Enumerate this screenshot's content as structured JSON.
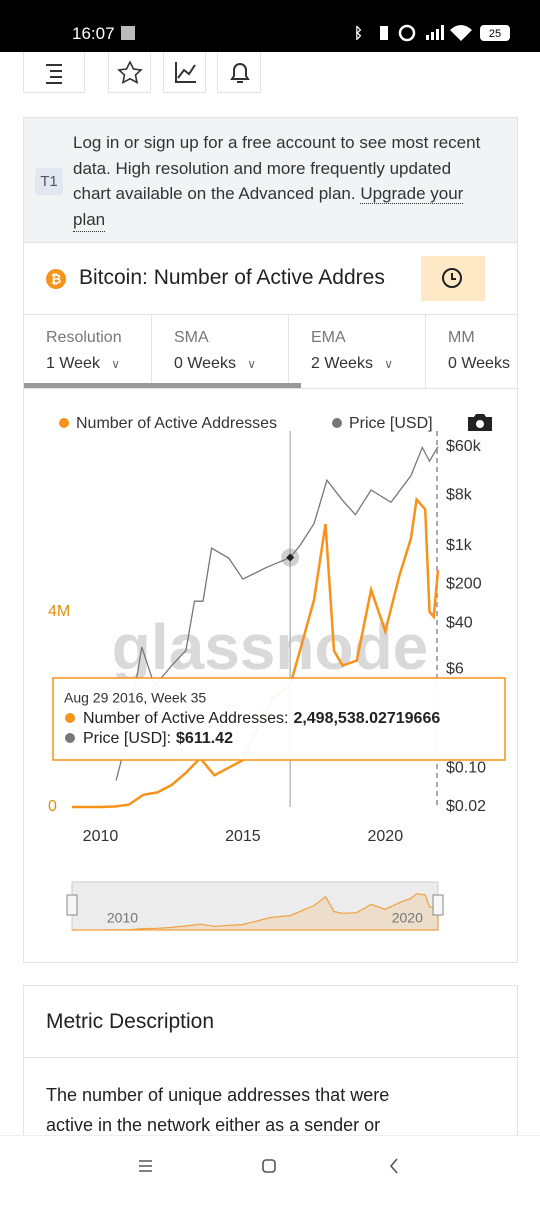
{
  "status_bar": {
    "time": "16:07",
    "battery": "25"
  },
  "notice": {
    "badge": "T1",
    "lines": [
      "Log in or sign up for a free account to see most recent",
      "data. High resolution and more frequently updated",
      "chart available on the Advanced plan."
    ],
    "link_lines": [
      "Upgrade your",
      "plan"
    ]
  },
  "card_title": "Bitcoin: Number of Active Addres",
  "tabs": [
    {
      "label": "Resolution",
      "value": "1 Week"
    },
    {
      "label": "SMA",
      "value": "0 Weeks"
    },
    {
      "label": "EMA",
      "value": "2 Weeks"
    },
    {
      "label": "MM",
      "value": "0 Weeks"
    }
  ],
  "chart_data": {
    "type": "line",
    "watermark": "glassnode",
    "xlim": [
      2009,
      2021.85
    ],
    "xticks": [
      2010,
      2015,
      2020
    ],
    "ylim": [
      0,
      7500000
    ],
    "yticks": [
      0,
      {
        "value": 4000000,
        "label": "4M"
      }
    ],
    "y2lim": [
      0.02,
      76000
    ],
    "y2scale": "log",
    "y2ticks": [
      {
        "value": 0.02,
        "label": "$0.02"
      },
      {
        "value": 0.1,
        "label": "$0.10"
      },
      {
        "value": 6,
        "label": "$6"
      },
      {
        "value": 40,
        "label": "$40"
      },
      {
        "value": 200,
        "label": "$200"
      },
      {
        "value": 1000,
        "label": "$1k"
      },
      {
        "value": 8000,
        "label": "$8k"
      },
      {
        "value": 60000,
        "label": "$60k"
      }
    ],
    "series": [
      {
        "name": "Number of Active Addresses",
        "color": "#f7931a",
        "x": [
          2009,
          2010,
          2010.5,
          2011,
          2011.5,
          2012,
          2012.5,
          2013,
          2013.5,
          2014,
          2015,
          2016,
          2016.66,
          2017,
          2017.5,
          2017.9,
          2018.2,
          2018.5,
          2019,
          2019.5,
          2020,
          2020.5,
          2020.9,
          2021.1,
          2021.4,
          2021.55,
          2021.7,
          2021.85
        ],
        "values": [
          0,
          0,
          10000,
          50000,
          250000,
          300000,
          450000,
          700000,
          1000000,
          650000,
          960000,
          2200000,
          2498538,
          3200000,
          4250000,
          5800000,
          3200000,
          2900000,
          3000000,
          4450000,
          3600000,
          4750000,
          5500000,
          6300000,
          6100000,
          4000000,
          3900000,
          4850000
        ]
      },
      {
        "name": "Price [USD]",
        "color": "#777777",
        "axis": "y2",
        "x": [
          2010.55,
          2010.9,
          2011.45,
          2011.9,
          2012.5,
          2013,
          2013.3,
          2013.6,
          2013.9,
          2014.5,
          2015,
          2015.8,
          2016.66,
          2017,
          2017.5,
          2017.95,
          2018.5,
          2018.95,
          2019.5,
          2020.2,
          2020.9,
          2021.3,
          2021.55,
          2021.85
        ],
        "values": [
          0.06,
          0.3,
          15,
          3,
          7,
          13,
          100,
          100,
          900,
          600,
          250,
          400,
          611.42,
          1000,
          2500,
          15000,
          6500,
          3600,
          10000,
          6000,
          18000,
          58000,
          33000,
          60000
        ]
      }
    ],
    "tooltip": {
      "date": "Aug 29 2016, Week 35",
      "rows": [
        {
          "name": "Number of Active Addresses:",
          "value": "2,498,538.02719666"
        },
        {
          "name": "Price [USD]:",
          "value": "$611.42"
        }
      ]
    },
    "navigator": {
      "xticks": [
        2010,
        2020
      ]
    }
  },
  "description": {
    "title": "Metric Description",
    "lines": [
      "The number of unique addresses that were",
      "active in the network either as a sender or"
    ]
  }
}
